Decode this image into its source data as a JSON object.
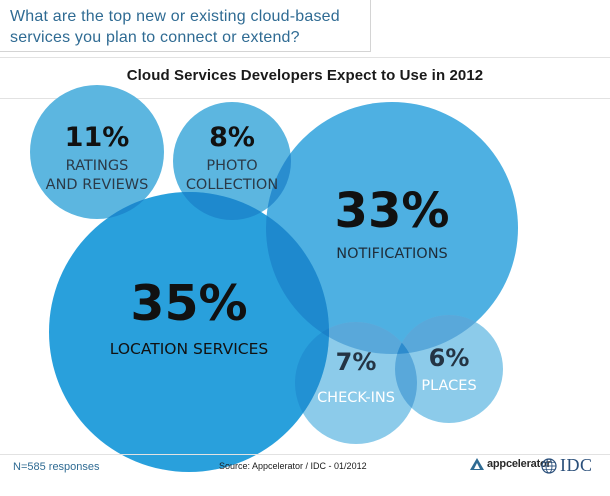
{
  "header": {
    "question_line1": "What are the top new or existing cloud-based",
    "question_line2": "services you plan to connect or extend?"
  },
  "chart_data": {
    "type": "bubble",
    "title": "Cloud Services Developers Expect to Use in 2012",
    "items": [
      {
        "label": "RATINGS\nAND REVIEWS",
        "percent": 11,
        "value_text": "11%",
        "color": "#5cb6e0"
      },
      {
        "label": "PHOTO\nCOLLECTION",
        "percent": 8,
        "value_text": "8%",
        "color": "#5cb6e0"
      },
      {
        "label": "NOTIFICATIONS",
        "percent": 33,
        "value_text": "33%",
        "color": "#4eb0e2"
      },
      {
        "label": "LOCATION SERVICES",
        "percent": 35,
        "value_text": "35%",
        "color": "#29a0dc"
      },
      {
        "label": "CHECK-INS",
        "percent": 7,
        "value_text": "7%",
        "color": "#8ccbea"
      },
      {
        "label": "PLACES",
        "percent": 6,
        "value_text": "6%",
        "color": "#8ccbea"
      }
    ]
  },
  "footer": {
    "responses": "N=585 responses",
    "source": "Source: Appcelerator / IDC - 01/2012",
    "logo_appcelerator": "appcelerator",
    "logo_idc": "IDC"
  }
}
